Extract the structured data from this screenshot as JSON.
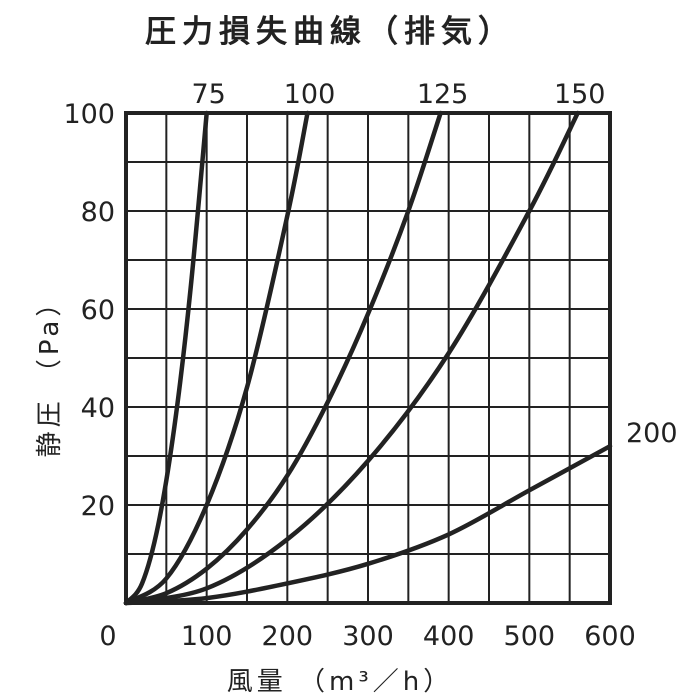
{
  "chart_data": {
    "type": "line",
    "title": "圧力損失曲線（排気）",
    "xlabel": "風量 （m³／h）",
    "ylabel": "静圧 （Pa）",
    "xlim": [
      0,
      600
    ],
    "ylim": [
      0,
      100
    ],
    "x_ticks": [
      0,
      100,
      200,
      300,
      400,
      500,
      600
    ],
    "y_ticks": [
      20,
      40,
      60,
      80,
      100
    ],
    "x_tick_labels": [
      "0",
      "100",
      "200",
      "300",
      "400",
      "500",
      "600"
    ],
    "y_tick_labels": [
      "20",
      "40",
      "60",
      "80",
      "100"
    ],
    "grid": true,
    "grid_step_x": 50,
    "grid_step_y": 10,
    "series": [
      {
        "name": "75",
        "x": [
          0,
          20,
          40,
          60,
          80,
          100
        ],
        "y": [
          0,
          4,
          16,
          36,
          64,
          100
        ]
      },
      {
        "name": "100",
        "x": [
          0,
          50,
          100,
          150,
          200,
          225
        ],
        "y": [
          0,
          5,
          20,
          44,
          79,
          100
        ]
      },
      {
        "name": "125",
        "x": [
          0,
          50,
          100,
          150,
          200,
          250,
          300,
          350,
          390
        ],
        "y": [
          0,
          2,
          7,
          15,
          26,
          41,
          59,
          80,
          100
        ]
      },
      {
        "name": "150",
        "x": [
          0,
          100,
          200,
          300,
          400,
          500,
          560
        ],
        "y": [
          0,
          3,
          13,
          29,
          51,
          80,
          100
        ]
      },
      {
        "name": "200",
        "x": [
          0,
          100,
          200,
          300,
          400,
          500,
          600
        ],
        "y": [
          0,
          1,
          4,
          8,
          14,
          23,
          32
        ]
      }
    ]
  }
}
